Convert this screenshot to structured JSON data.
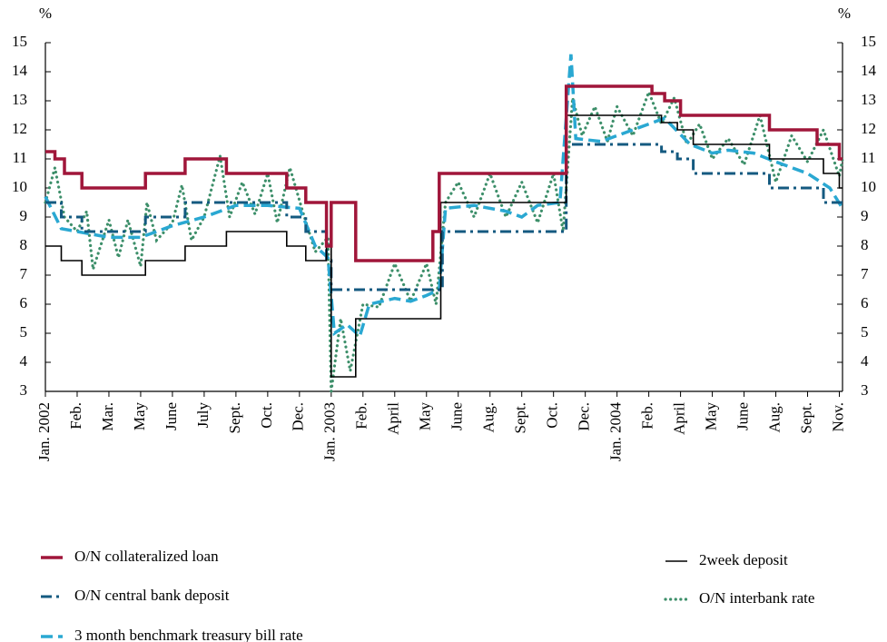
{
  "chart_data": {
    "type": "line",
    "y_unit_label": "%",
    "ylim": [
      3,
      15
    ],
    "yticks": [
      3,
      4,
      5,
      6,
      7,
      8,
      9,
      10,
      11,
      12,
      13,
      14,
      15
    ],
    "xlim": [
      0,
      25.1
    ],
    "xticks": [
      {
        "value": 0,
        "label": "Jan. 2002"
      },
      {
        "value": 1,
        "label": "Feb."
      },
      {
        "value": 2,
        "label": "Mar."
      },
      {
        "value": 3,
        "label": "May"
      },
      {
        "value": 4,
        "label": "June"
      },
      {
        "value": 5,
        "label": "July"
      },
      {
        "value": 6,
        "label": "Sept."
      },
      {
        "value": 7,
        "label": "Oct."
      },
      {
        "value": 8,
        "label": "Dec."
      },
      {
        "value": 9,
        "label": "Jan. 2003"
      },
      {
        "value": 10,
        "label": "Feb."
      },
      {
        "value": 11,
        "label": "April"
      },
      {
        "value": 12,
        "label": "May"
      },
      {
        "value": 13,
        "label": "June"
      },
      {
        "value": 14,
        "label": "Aug."
      },
      {
        "value": 15,
        "label": "Sept."
      },
      {
        "value": 16,
        "label": "Oct."
      },
      {
        "value": 17,
        "label": "Dec."
      },
      {
        "value": 18,
        "label": "Jan. 2004"
      },
      {
        "value": 19,
        "label": "Feb."
      },
      {
        "value": 20,
        "label": "April"
      },
      {
        "value": 21,
        "label": "May"
      },
      {
        "value": 22,
        "label": "June"
      },
      {
        "value": 23,
        "label": "Aug."
      },
      {
        "value": 24,
        "label": "Sept."
      },
      {
        "value": 25,
        "label": "Nov."
      }
    ],
    "series": [
      {
        "name": "O/N collateralized loan",
        "color": "#a0163a",
        "dash": "solid",
        "x": [
          0,
          0.3,
          0.3,
          0.6,
          0.6,
          1.15,
          1.15,
          3.15,
          3.15,
          4.4,
          4.4,
          5.7,
          5.7,
          7.6,
          7.6,
          8.2,
          8.2,
          8.85,
          8.85,
          9.0,
          9.0,
          9.77,
          9.77,
          12.2,
          12.2,
          12.4,
          12.4,
          16.4,
          16.4,
          19.1,
          19.1,
          19.5,
          19.5,
          20.0,
          20.0,
          22.8,
          22.8,
          24.3,
          24.3,
          25.0,
          25.0,
          25.1
        ],
        "values": [
          11.25,
          11.25,
          11,
          11,
          10.5,
          10.5,
          10,
          10,
          10.5,
          10.5,
          11,
          11,
          10.5,
          10.5,
          10,
          10,
          9.5,
          9.5,
          8,
          8,
          9.5,
          9.5,
          7.5,
          7.5,
          8.5,
          8.5,
          10.5,
          10.5,
          13.5,
          13.5,
          13.25,
          13.25,
          13,
          13,
          12.5,
          12.5,
          12,
          12,
          11.5,
          11.5,
          11,
          11
        ]
      },
      {
        "name": "O/N central bank deposit",
        "color": "#145a80",
        "dash": "dashdot",
        "x": [
          0,
          0.5,
          0.5,
          1.15,
          1.15,
          3.15,
          3.15,
          4.4,
          4.4,
          7.6,
          7.6,
          8.2,
          8.2,
          8.85,
          8.85,
          9.0,
          9.0,
          12.5,
          12.5,
          16.4,
          16.4,
          19.4,
          19.4,
          19.9,
          19.9,
          20.4,
          20.4,
          22.8,
          22.8,
          24.5,
          24.5,
          25.1
        ],
        "values": [
          9.5,
          9.5,
          9,
          9,
          8.5,
          8.5,
          9,
          9,
          9.5,
          9.5,
          9,
          9,
          8.5,
          8.5,
          7.5,
          7.5,
          6.5,
          6.5,
          8.5,
          8.5,
          11.5,
          11.5,
          11.25,
          11.25,
          11,
          11,
          10.5,
          10.5,
          10,
          10,
          9.5,
          9.5
        ]
      },
      {
        "name": "3 month benchmark treasury bill rate",
        "color": "#2aa8d2",
        "dash": "dashed",
        "x": [
          0,
          0.5,
          1,
          2,
          3,
          4,
          5,
          6,
          7,
          8,
          8.5,
          8.9,
          9.1,
          9.5,
          9.9,
          10.2,
          11,
          11.5,
          12,
          12.4,
          12.6,
          13.5,
          14.5,
          15,
          15.5,
          16.2,
          16.55,
          16.7,
          17.5,
          18.5,
          19.5,
          20.3,
          21,
          21.5,
          22.3,
          23,
          23.5,
          24,
          24.7,
          25.1
        ],
        "values": [
          9.7,
          8.6,
          8.5,
          8.3,
          8.3,
          8.7,
          9.0,
          9.4,
          9.4,
          9.3,
          8.0,
          7.6,
          5.0,
          5.3,
          4.9,
          6.0,
          6.2,
          6.1,
          6.3,
          6.5,
          9.3,
          9.4,
          9.2,
          9.0,
          9.4,
          9.5,
          14.6,
          11.7,
          11.6,
          12.0,
          12.4,
          11.5,
          11.2,
          11.3,
          11.2,
          10.9,
          10.7,
          10.5,
          10.0,
          9.3
        ]
      },
      {
        "name": "2week deposit",
        "color": "#000000",
        "dash": "thin",
        "x": [
          0,
          0.5,
          0.5,
          1.15,
          1.15,
          3.15,
          3.15,
          4.4,
          4.4,
          5.7,
          5.7,
          7.6,
          7.6,
          8.2,
          8.2,
          8.85,
          8.85,
          9.0,
          9.0,
          9.77,
          9.77,
          12.45,
          12.45,
          16.4,
          16.4,
          19.4,
          19.4,
          19.9,
          19.9,
          20.4,
          20.4,
          22.8,
          22.8,
          24.5,
          24.5,
          25.0,
          25.0,
          25.1
        ],
        "values": [
          8,
          8,
          7.5,
          7.5,
          7,
          7,
          7.5,
          7.5,
          8,
          8,
          8.5,
          8.5,
          8,
          8,
          7.5,
          7.5,
          8,
          8,
          3.5,
          3.5,
          5.5,
          5.5,
          9.5,
          9.5,
          12.5,
          12.5,
          12.25,
          12.25,
          12,
          12,
          11.5,
          11.5,
          11,
          11,
          10.5,
          10.5,
          10,
          10
        ]
      },
      {
        "name": "O/N interbank rate",
        "color": "#3d8f6a",
        "dash": "dotted",
        "x": [
          0,
          0.3,
          0.6,
          1,
          1.3,
          1.5,
          2,
          2.3,
          2.6,
          3,
          3.2,
          3.5,
          4,
          4.3,
          4.6,
          5,
          5.5,
          5.8,
          6.2,
          6.6,
          7,
          7.3,
          7.7,
          8.1,
          8.5,
          8.9,
          9,
          9.3,
          9.6,
          10,
          10.5,
          11,
          11.5,
          12,
          12.3,
          12.6,
          13,
          13.5,
          14,
          14.5,
          15,
          15.5,
          16,
          16.3,
          16.6,
          16.9,
          17.3,
          17.7,
          18,
          18.5,
          19,
          19.4,
          19.8,
          20.2,
          20.6,
          21,
          21.5,
          22,
          22.5,
          23,
          23.5,
          24,
          24.5,
          25,
          25.1
        ],
        "values": [
          9.5,
          10.7,
          9.0,
          8.5,
          9.2,
          7.2,
          8.9,
          7.6,
          8.9,
          7.3,
          9.5,
          8.2,
          8.8,
          10.1,
          8.2,
          9.0,
          11.1,
          9.0,
          10.2,
          9.1,
          10.5,
          8.8,
          10.7,
          9.2,
          7.8,
          8.3,
          3.0,
          5.5,
          3.7,
          6.0,
          5.9,
          7.4,
          6.1,
          7.4,
          6.0,
          9.5,
          10.2,
          9.0,
          10.5,
          9.0,
          10.2,
          8.8,
          10.5,
          8.5,
          13.1,
          11.8,
          12.8,
          11.6,
          12.8,
          11.8,
          13.3,
          12.2,
          13.1,
          11.5,
          12.2,
          11.0,
          11.7,
          10.8,
          12.5,
          10.2,
          11.8,
          10.9,
          12.0,
          10.4,
          11.0
        ]
      }
    ]
  }
}
